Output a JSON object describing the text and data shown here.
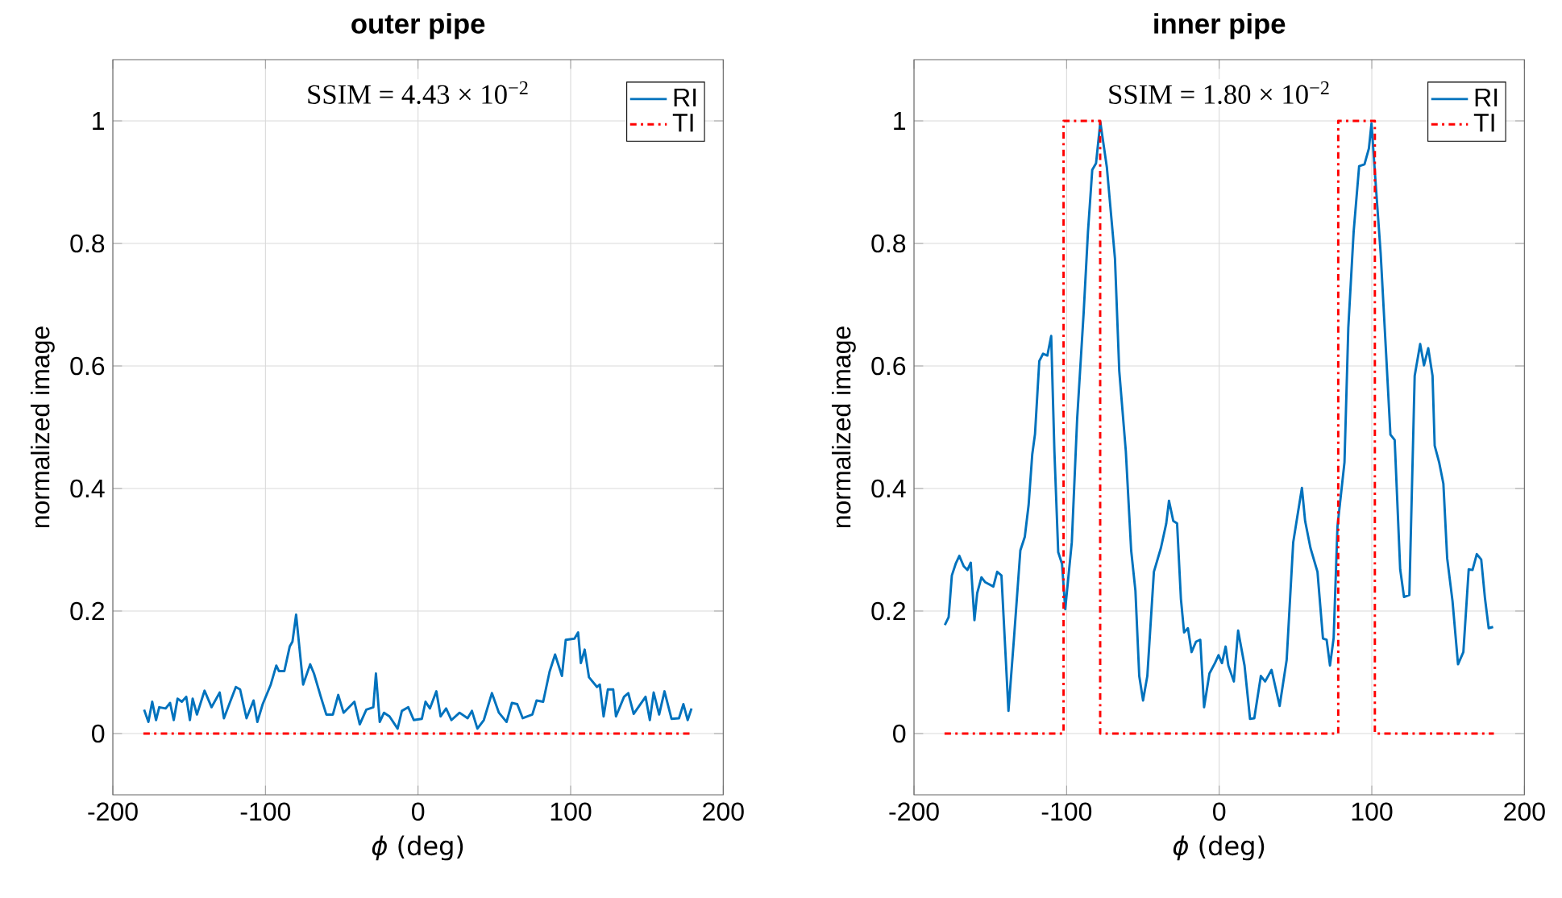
{
  "chart_data": [
    {
      "type": "line",
      "title": "outer pipe",
      "xlabel": "*ϕ* (deg)",
      "ylabel": "normalized image",
      "annotations": [
        "SSIM = 4.43 × 10$^{−2}$"
      ],
      "xlim": [
        -200,
        200
      ],
      "ylim": [
        -0.1,
        1.1
      ],
      "xticks": [
        -200,
        -100,
        0,
        100,
        200
      ],
      "yticks": [
        0,
        0.2,
        0.4,
        0.6,
        0.8,
        1
      ],
      "grid": true,
      "legend": "top right",
      "series": [
        {
          "name": "RI",
          "color": "#0072bd",
          "line_style": "solid",
          "x": [
            -179.5,
            -176.7,
            -174.2,
            -171.7,
            -169.6,
            -165.4,
            -162.5,
            -160.1,
            -157.6,
            -154.8,
            -151.9,
            -149.5,
            -147.7,
            -144.9,
            -139.9,
            -135.3,
            -130.0,
            -127.2,
            -123.7,
            -119.4,
            -116.6,
            -112.4,
            -107.8,
            -105.3,
            -101.8,
            -96.5,
            -92.9,
            -91.2,
            -87.6,
            -84.1,
            -82.3,
            -79.9,
            -75.3,
            -70.7,
            -68.2,
            -63.6,
            -60.1,
            -55.8,
            -52.3,
            -48.8,
            -41.7,
            -38.2,
            -33.9,
            -29.3,
            -27.6,
            -25.1,
            -22.3,
            -18.7,
            -13.4,
            -10.6,
            -6.4,
            -2.8,
            2.5,
            4.9,
            7.8,
            12.0,
            14.8,
            18.4,
            21.9,
            27.2,
            32.5,
            35.3,
            38.9,
            43.1,
            48.4,
            53.0,
            58.0,
            61.5,
            65.0,
            68.6,
            74.9,
            77.7,
            82.0,
            86.2,
            89.8,
            94.3,
            96.8,
            102.5,
            104.9,
            106.7,
            109.2,
            112.0,
            117.3,
            119.1,
            121.6,
            124.4,
            127.9,
            129.7,
            135.0,
            137.8,
            141.3,
            149.1,
            151.9,
            154.4,
            158.0,
            161.5,
            166.1,
            171.0,
            173.9,
            176.7,
            179.2
          ],
          "values": [
            0.039,
            0.019,
            0.052,
            0.022,
            0.043,
            0.041,
            0.05,
            0.022,
            0.057,
            0.052,
            0.06,
            0.022,
            0.057,
            0.031,
            0.07,
            0.043,
            0.067,
            0.025,
            0.048,
            0.076,
            0.072,
            0.025,
            0.054,
            0.019,
            0.048,
            0.08,
            0.111,
            0.102,
            0.102,
            0.142,
            0.15,
            0.194,
            0.08,
            0.113,
            0.098,
            0.059,
            0.031,
            0.031,
            0.063,
            0.034,
            0.052,
            0.015,
            0.039,
            0.043,
            0.098,
            0.019,
            0.034,
            0.028,
            0.008,
            0.037,
            0.043,
            0.022,
            0.024,
            0.052,
            0.041,
            0.069,
            0.028,
            0.041,
            0.022,
            0.034,
            0.025,
            0.037,
            0.008,
            0.022,
            0.066,
            0.034,
            0.019,
            0.05,
            0.048,
            0.025,
            0.031,
            0.054,
            0.052,
            0.101,
            0.129,
            0.094,
            0.153,
            0.155,
            0.165,
            0.115,
            0.137,
            0.092,
            0.076,
            0.08,
            0.028,
            0.072,
            0.072,
            0.028,
            0.06,
            0.066,
            0.032,
            0.06,
            0.022,
            0.067,
            0.031,
            0.069,
            0.024,
            0.025,
            0.048,
            0.022,
            0.041
          ]
        },
        {
          "name": "TI",
          "color": "#ff0000",
          "line_style": "dashdot",
          "x": [
            -180,
            180
          ],
          "values": [
            0,
            0
          ]
        }
      ]
    },
    {
      "type": "line",
      "title": "inner pipe",
      "xlabel": "*ϕ* (deg)",
      "ylabel": "normalized image",
      "annotations": [
        "SSIM = 1.80 × 10$^{−2}$"
      ],
      "xlim": [
        -200,
        200
      ],
      "ylim": [
        -0.1,
        1.1
      ],
      "xticks": [
        -200,
        -100,
        0,
        100,
        200
      ],
      "yticks": [
        0,
        0.2,
        0.4,
        0.6,
        0.8,
        1
      ],
      "grid": true,
      "legend": "top right",
      "series": [
        {
          "name": "RI",
          "color": "#0072bd",
          "line_style": "solid",
          "x": [
            -179.8,
            -177.3,
            -175.2,
            -172.7,
            -170.3,
            -167.4,
            -165.0,
            -162.8,
            -160.4,
            -158.6,
            -155.8,
            -153.3,
            -148.0,
            -145.5,
            -142.7,
            -138.1,
            -134.5,
            -130.3,
            -127.4,
            -124.9,
            -122.5,
            -120.7,
            -117.9,
            -115.4,
            -112.6,
            -110.1,
            -108.0,
            -105.5,
            -103.0,
            -100.9,
            -96.6,
            -93.1,
            -88.8,
            -86.0,
            -83.2,
            -80.7,
            -77.9,
            -73.6,
            -68.3,
            -65.5,
            -61.2,
            -57.7,
            -54.9,
            -52.4,
            -49.9,
            -47.1,
            -42.8,
            -38.2,
            -34.7,
            -32.9,
            -30.1,
            -27.6,
            -25.1,
            -23.0,
            -20.5,
            -18.1,
            -15.2,
            -12.4,
            -9.9,
            -6.4,
            -2.8,
            -0.4,
            1.8,
            4.2,
            6.0,
            9.6,
            12.4,
            16.6,
            20.2,
            23.0,
            27.3,
            30.1,
            34.3,
            39.6,
            44.2,
            48.5,
            51.3,
            54.2,
            56.3,
            59.8,
            64.4,
            68.0,
            70.4,
            72.6,
            75.0,
            77.5,
            82.1,
            84.6,
            88.1,
            91.7,
            95.2,
            98.1,
            99.8,
            102.3,
            105.8,
            109.4,
            112.2,
            115.0,
            118.6,
            121.1,
            124.6,
            128.1,
            131.7,
            134.2,
            137.0,
            139.8,
            141.2,
            144.1,
            146.9,
            149.4,
            152.9,
            156.5,
            160.0,
            163.5,
            166.0,
            168.8,
            171.7,
            174.2,
            176.6,
            179.5
          ],
          "values": [
            0.177,
            0.19,
            0.258,
            0.277,
            0.29,
            0.273,
            0.267,
            0.279,
            0.185,
            0.229,
            0.255,
            0.247,
            0.24,
            0.264,
            0.258,
            0.037,
            0.155,
            0.299,
            0.321,
            0.373,
            0.456,
            0.489,
            0.608,
            0.62,
            0.617,
            0.649,
            0.461,
            0.296,
            0.277,
            0.203,
            0.312,
            0.513,
            0.688,
            0.819,
            0.92,
            0.931,
            0.998,
            0.924,
            0.775,
            0.592,
            0.461,
            0.299,
            0.233,
            0.094,
            0.054,
            0.094,
            0.264,
            0.303,
            0.343,
            0.38,
            0.347,
            0.343,
            0.22,
            0.165,
            0.172,
            0.133,
            0.15,
            0.153,
            0.043,
            0.098,
            0.115,
            0.128,
            0.115,
            0.142,
            0.111,
            0.085,
            0.168,
            0.111,
            0.024,
            0.025,
            0.094,
            0.085,
            0.104,
            0.045,
            0.12,
            0.312,
            0.356,
            0.401,
            0.347,
            0.303,
            0.264,
            0.155,
            0.153,
            0.111,
            0.156,
            0.338,
            0.443,
            0.662,
            0.819,
            0.926,
            0.929,
            0.955,
            0.996,
            0.906,
            0.784,
            0.619,
            0.488,
            0.479,
            0.268,
            0.223,
            0.226,
            0.584,
            0.636,
            0.601,
            0.629,
            0.584,
            0.47,
            0.443,
            0.408,
            0.286,
            0.216,
            0.113,
            0.133,
            0.268,
            0.267,
            0.293,
            0.284,
            0.22,
            0.172,
            0.174
          ]
        },
        {
          "name": "TI",
          "color": "#ff0000",
          "line_style": "dashdot",
          "x": [
            -180,
            -102,
            -102,
            -78,
            -78,
            78,
            78,
            102,
            102,
            180
          ],
          "values": [
            0,
            0,
            1,
            1,
            0,
            0,
            1,
            1,
            0,
            0
          ]
        }
      ]
    }
  ]
}
